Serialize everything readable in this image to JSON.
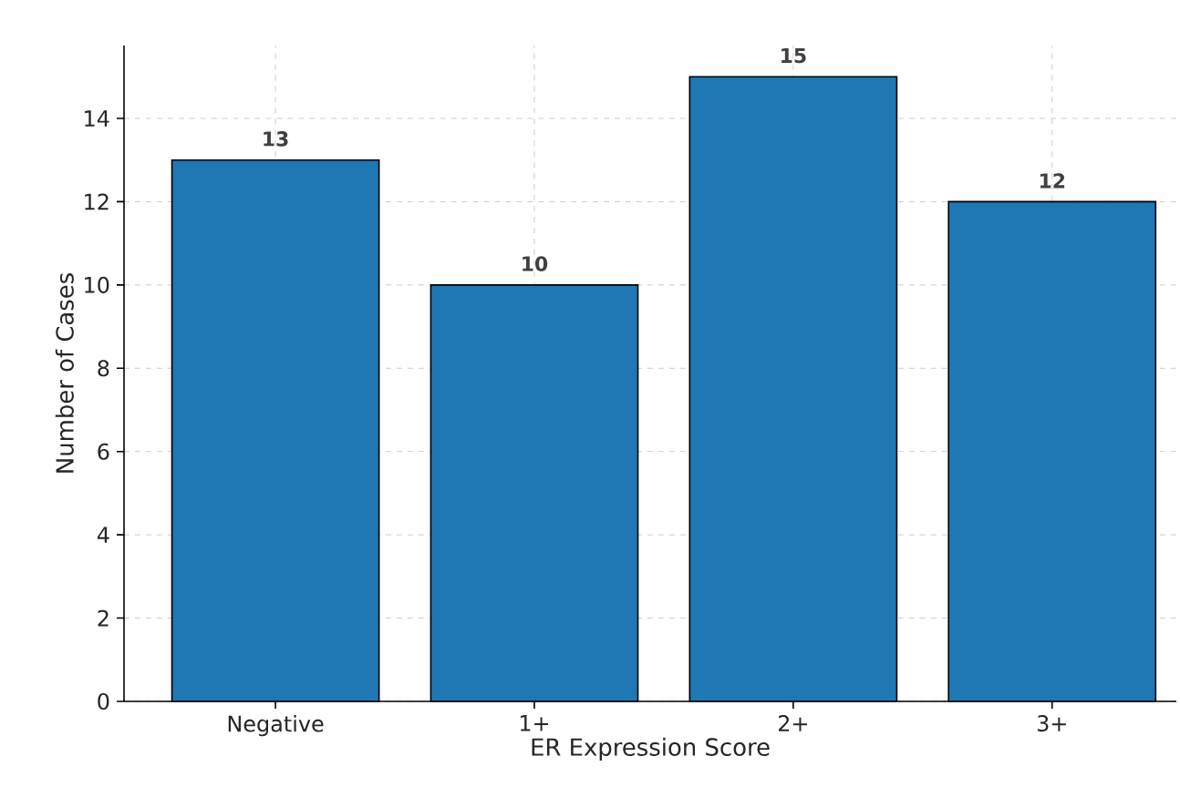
{
  "chart_data": {
    "type": "bar",
    "xlabel": "ER Expression Score",
    "ylabel": "Number of Cases",
    "categories": [
      "Negative",
      "1+",
      "2+",
      "3+"
    ],
    "values": [
      13,
      10,
      15,
      12
    ],
    "color": "#1f77b4",
    "ylim": [
      0,
      15.75
    ],
    "yticks": [
      0,
      2,
      4,
      6,
      8,
      10,
      12,
      14
    ],
    "grid": true,
    "data_labels": true
  }
}
